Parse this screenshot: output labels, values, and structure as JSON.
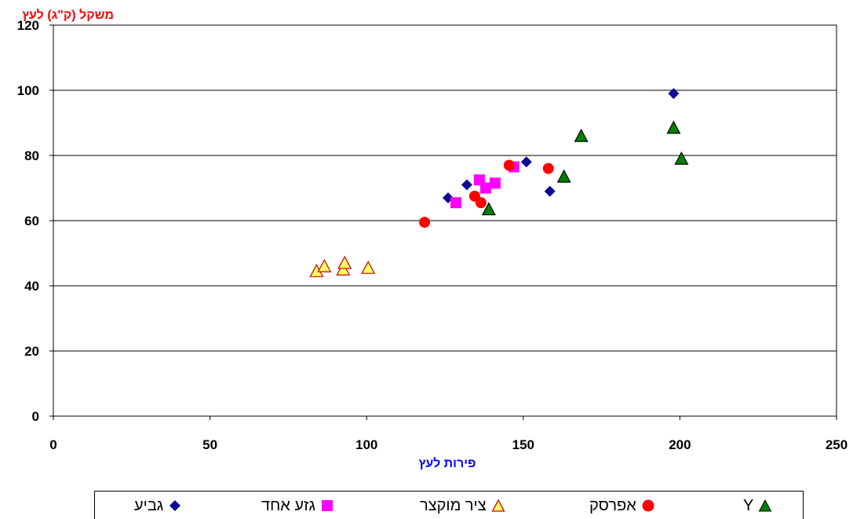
{
  "chart_data": {
    "type": "scatter",
    "title": "",
    "xlabel": "פירות לעץ",
    "ylabel": "משקל (ק\"ג) לעץ",
    "xlim": [
      0,
      250
    ],
    "ylim": [
      0,
      120
    ],
    "xticks": [
      "0",
      "50",
      "100",
      "150",
      "200",
      "250"
    ],
    "yticks": [
      "0",
      "20",
      "40",
      "60",
      "80",
      "100",
      "120"
    ],
    "grid": "horizontal",
    "legend_position": "bottom",
    "series": [
      {
        "name": "גביע",
        "marker": "diamond",
        "color": "#0a0a96",
        "points": [
          [
            126,
            67
          ],
          [
            132,
            71
          ],
          [
            151,
            78
          ],
          [
            158.5,
            69
          ],
          [
            198,
            99
          ]
        ]
      },
      {
        "name": "גזע אחד",
        "marker": "square",
        "color": "#ff00ff",
        "points": [
          [
            128.5,
            65.5
          ],
          [
            136,
            72.5
          ],
          [
            138,
            70
          ],
          [
            141,
            71.5
          ],
          [
            147,
            76.5
          ]
        ]
      },
      {
        "name": "ציר מוקצר",
        "marker": "triangle-open",
        "color": "#ffff66",
        "stroke": "#cc0000",
        "points": [
          [
            84,
            44.5
          ],
          [
            86.5,
            46
          ],
          [
            92.5,
            45
          ],
          [
            93,
            47
          ],
          [
            100.5,
            45.5
          ]
        ]
      },
      {
        "name": "אפרסק",
        "marker": "circle",
        "color": "#ff0000",
        "points": [
          [
            118.5,
            59.5
          ],
          [
            134.5,
            67.5
          ],
          [
            136.5,
            65.5
          ],
          [
            145.5,
            77
          ],
          [
            158,
            76
          ]
        ]
      },
      {
        "name": "Y",
        "marker": "triangle",
        "color": "#008000",
        "points": [
          [
            139,
            63.5
          ],
          [
            163,
            73.5
          ],
          [
            168.5,
            86
          ],
          [
            198,
            88.5
          ],
          [
            200.5,
            79
          ]
        ]
      }
    ]
  }
}
